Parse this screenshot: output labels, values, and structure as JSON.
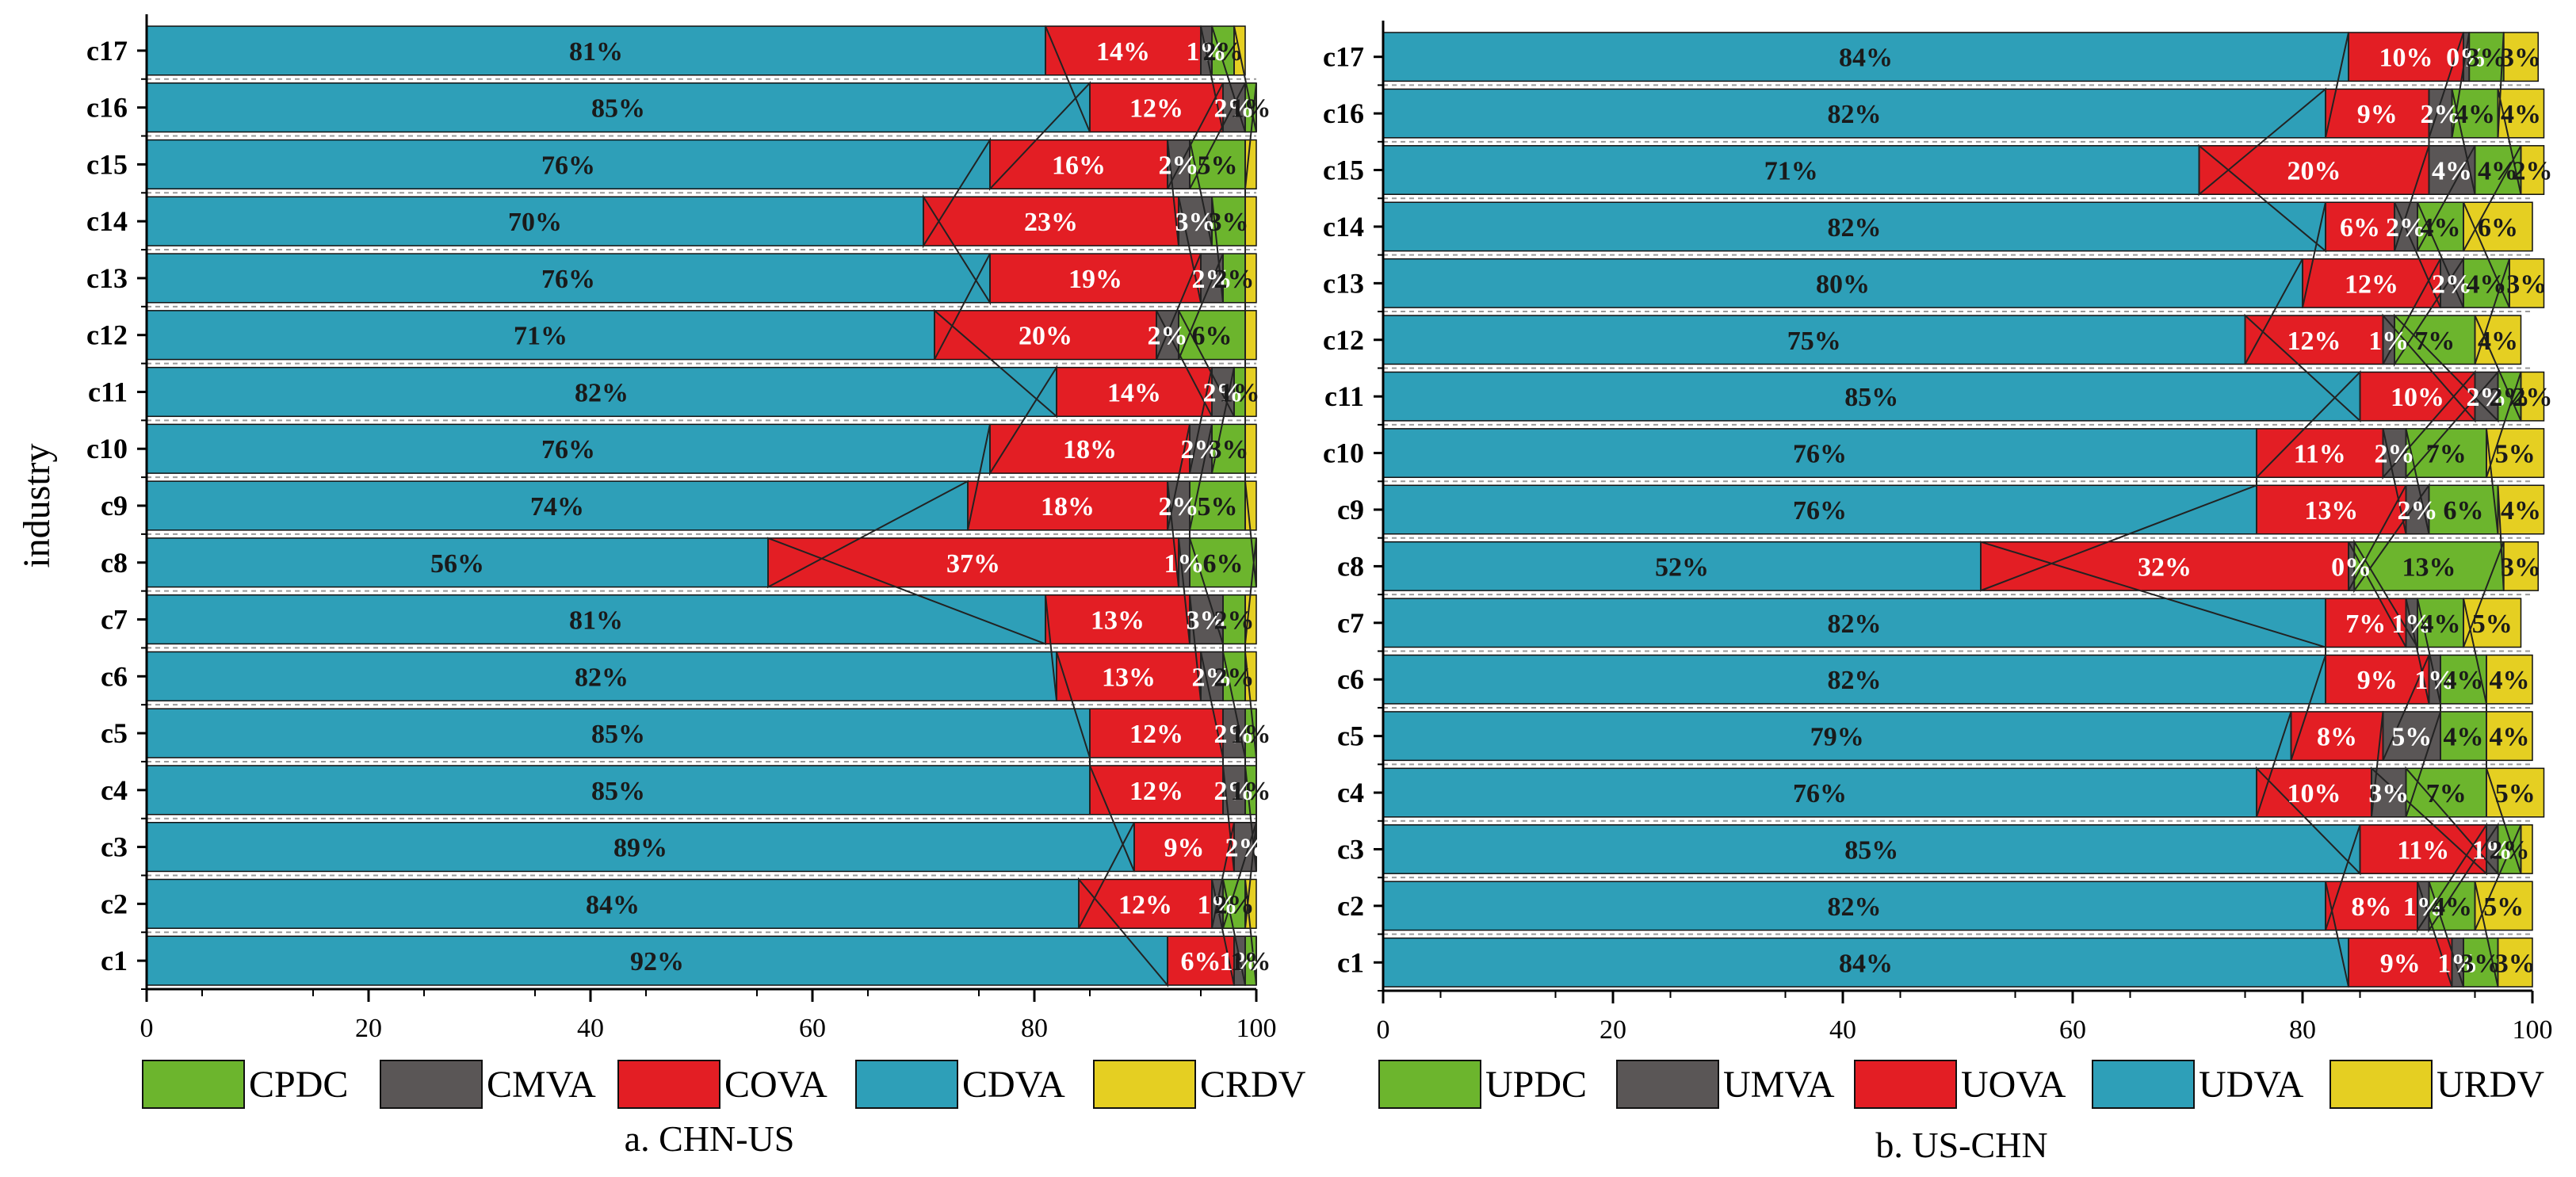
{
  "chart_data": [
    {
      "type": "bar",
      "orientation": "horizontal",
      "stacked": true,
      "caption": "a. CHN-US",
      "ylabel": "industry",
      "xlim": [
        0,
        100
      ],
      "xticks": [
        0,
        20,
        40,
        60,
        80,
        100
      ],
      "categories": [
        "c1",
        "c2",
        "c3",
        "c4",
        "c5",
        "c6",
        "c7",
        "c8",
        "c9",
        "c10",
        "c11",
        "c12",
        "c13",
        "c14",
        "c15",
        "c16",
        "c17"
      ],
      "series": [
        {
          "name": "CDVA",
          "color": "#2e9fb8",
          "label_color": "#1a1a1a",
          "values": [
            92,
            84,
            89,
            85,
            85,
            82,
            81,
            56,
            74,
            76,
            82,
            71,
            76,
            70,
            76,
            85,
            81
          ],
          "labels": [
            "92%",
            "84%",
            "89%",
            "85%",
            "85%",
            "82%",
            "81%",
            "56%",
            "74%",
            "76%",
            "82%",
            "71%",
            "76%",
            "70%",
            "76%",
            "85%",
            "81%"
          ]
        },
        {
          "name": "COVA",
          "color": "#e31e24",
          "label_color": "#ffffff",
          "values": [
            6,
            12,
            9,
            12,
            12,
            13,
            13,
            37,
            18,
            18,
            14,
            20,
            19,
            23,
            16,
            12,
            14
          ],
          "labels": [
            "6%",
            "12%",
            "9%",
            "12%",
            "12%",
            "13%",
            "13%",
            "37%",
            "18%",
            "18%",
            "14%",
            "20%",
            "19%",
            "23%",
            "16%",
            "12%",
            "14%"
          ]
        },
        {
          "name": "CMVA",
          "color": "#5a5656",
          "label_color": "#ffffff",
          "values": [
            1,
            1,
            2,
            2,
            2,
            2,
            3,
            1,
            2,
            2,
            2,
            2,
            2,
            3,
            2,
            2,
            1
          ],
          "labels": [
            "1%",
            "1%",
            "2%",
            "2%",
            "2%",
            "2%",
            "3%",
            "1%",
            "2%",
            "2%",
            "2%",
            "2%",
            "2%",
            "3%",
            "2%",
            "2%",
            "1%"
          ]
        },
        {
          "name": "CPDC",
          "color": "#6cb52d",
          "label_color": "#1a1a1a",
          "values": [
            1,
            2,
            0,
            1,
            1,
            2,
            2,
            6,
            5,
            3,
            1,
            6,
            2,
            3,
            5,
            1,
            2
          ],
          "labels": [
            "1%",
            "2%",
            "",
            "1%",
            "1%",
            "2%",
            "2%",
            "6%",
            "5%",
            "3%",
            "1%",
            "6%",
            "2%",
            "3%",
            "5%",
            "1%",
            "2%"
          ]
        },
        {
          "name": "CRDV",
          "color": "#e5cf22",
          "label_color": "#1a1a1a",
          "values": [
            0,
            1,
            0,
            0,
            0,
            1,
            1,
            0,
            1,
            1,
            1,
            1,
            1,
            1,
            1,
            0,
            1
          ],
          "labels": [
            "",
            "",
            "",
            "",
            "",
            "",
            "",
            "",
            "",
            "",
            "",
            "",
            "",
            "",
            "",
            "",
            ""
          ]
        }
      ],
      "legend": [
        "CPDC",
        "CMVA",
        "COVA",
        "CDVA",
        "CRDV"
      ],
      "legend_position": "bottom"
    },
    {
      "type": "bar",
      "orientation": "horizontal",
      "stacked": true,
      "caption": "b. US-CHN",
      "ylabel": "",
      "xlim": [
        0,
        100
      ],
      "xticks": [
        0,
        20,
        40,
        60,
        80,
        100
      ],
      "categories": [
        "c1",
        "c2",
        "c3",
        "c4",
        "c5",
        "c6",
        "c7",
        "c8",
        "c9",
        "c10",
        "c11",
        "c12",
        "c13",
        "c14",
        "c15",
        "c16",
        "c17"
      ],
      "series": [
        {
          "name": "UDVA",
          "color": "#2e9fb8",
          "label_color": "#1a1a1a",
          "values": [
            84,
            82,
            85,
            76,
            79,
            82,
            82,
            52,
            76,
            76,
            85,
            75,
            80,
            82,
            71,
            82,
            84
          ],
          "labels": [
            "84%",
            "82%",
            "85%",
            "76%",
            "79%",
            "82%",
            "82%",
            "52%",
            "76%",
            "76%",
            "85%",
            "75%",
            "80%",
            "82%",
            "71%",
            "82%",
            "84%"
          ]
        },
        {
          "name": "UOVA",
          "color": "#e31e24",
          "label_color": "#ffffff",
          "values": [
            9,
            8,
            11,
            10,
            8,
            9,
            7,
            32,
            13,
            11,
            10,
            12,
            12,
            6,
            20,
            9,
            10
          ],
          "labels": [
            "9%",
            "8%",
            "11%",
            "10%",
            "8%",
            "9%",
            "7%",
            "32%",
            "13%",
            "11%",
            "10%",
            "12%",
            "12%",
            "6%",
            "20%",
            "9%",
            "10%"
          ]
        },
        {
          "name": "UMVA",
          "color": "#5a5656",
          "label_color": "#ffffff",
          "values": [
            1,
            1,
            1,
            3,
            5,
            1,
            1,
            0.5,
            2,
            2,
            2,
            1,
            2,
            2,
            4,
            2,
            0.5
          ],
          "labels": [
            "1%",
            "1%",
            "1%",
            "3%",
            "5%",
            "1%",
            "1%",
            "0%",
            "2%",
            "2%",
            "2%",
            "1%",
            "2%",
            "2%",
            "4%",
            "2%",
            "0%"
          ]
        },
        {
          "name": "UPDC",
          "color": "#6cb52d",
          "label_color": "#1a1a1a",
          "values": [
            3,
            4,
            2,
            7,
            4,
            4,
            4,
            13,
            6,
            7,
            2,
            7,
            4,
            4,
            4,
            4,
            3
          ],
          "labels": [
            "3%",
            "4%",
            "2%",
            "7%",
            "4%",
            "4%",
            "4%",
            "13%",
            "6%",
            "7%",
            "2%",
            "7%",
            "4%",
            "4%",
            "4%",
            "4%",
            "3%"
          ]
        },
        {
          "name": "URDV",
          "color": "#e5cf22",
          "label_color": "#1a1a1a",
          "values": [
            3,
            5,
            1,
            5,
            4,
            4,
            5,
            3,
            4,
            5,
            2,
            4,
            3,
            6,
            2,
            4,
            3
          ],
          "labels": [
            "3%",
            "5%",
            "",
            "5%",
            "4%",
            "4%",
            "5%",
            "3%",
            "4%",
            "5%",
            "2%",
            "4%",
            "3%",
            "6%",
            "2%",
            "4%",
            "3%"
          ]
        }
      ],
      "legend": [
        "UPDC",
        "UMVA",
        "UOVA",
        "UDVA",
        "URDV"
      ],
      "legend_position": "bottom"
    }
  ]
}
